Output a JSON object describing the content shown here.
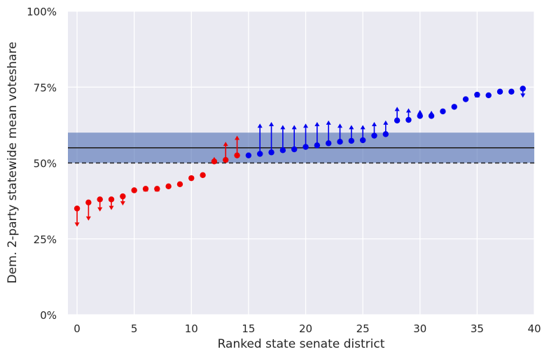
{
  "chart_data": {
    "type": "scatter",
    "title": "",
    "xlabel": "Ranked state senate district",
    "ylabel": "Dem. 2-party statewide mean voteshare",
    "xlim": [
      -0.8,
      40
    ],
    "ylim": [
      0,
      100
    ],
    "x_ticks": [
      0,
      5,
      10,
      15,
      20,
      25,
      30,
      35,
      40
    ],
    "y_ticks": [
      0,
      25,
      50,
      75,
      100
    ],
    "y_tick_labels": [
      "0%",
      "25%",
      "50%",
      "75%",
      "100%"
    ],
    "grid": true,
    "mean_line": 55,
    "reference_line": 50,
    "band": [
      50,
      60
    ],
    "colors": {
      "dem": "#0000ee",
      "rep": "#ee0000",
      "background": "#eaeaf2",
      "band": "#4c6cb3",
      "grid": "#ffffff"
    },
    "series": [
      {
        "party": "rep",
        "points": [
          {
            "x": 0,
            "y": 35,
            "y_end": 29
          },
          {
            "x": 1,
            "y": 37,
            "y_end": 31
          },
          {
            "x": 2,
            "y": 38,
            "y_end": 34
          },
          {
            "x": 3,
            "y": 38,
            "y_end": 34.5
          },
          {
            "x": 4,
            "y": 39,
            "y_end": 36
          },
          {
            "x": 5,
            "y": 41,
            "y_end": 42
          },
          {
            "x": 6,
            "y": 41.5,
            "y_end": 42
          },
          {
            "x": 7,
            "y": 41.5,
            "y_end": 42
          },
          {
            "x": 8,
            "y": 42.3,
            "y_end": 42.3
          },
          {
            "x": 9,
            "y": 43,
            "y_end": 43
          },
          {
            "x": 10,
            "y": 45,
            "y_end": 45
          },
          {
            "x": 11,
            "y": 46,
            "y_end": 46
          },
          {
            "x": 12,
            "y": 50.5,
            "y_end": 52
          },
          {
            "x": 13,
            "y": 51,
            "y_end": 57
          },
          {
            "x": 14,
            "y": 52.5,
            "y_end": 59
          }
        ]
      },
      {
        "party": "dem",
        "points": [
          {
            "x": 15,
            "y": 52.5,
            "y_end": 52.5
          },
          {
            "x": 16,
            "y": 53,
            "y_end": 63
          },
          {
            "x": 17,
            "y": 53.5,
            "y_end": 63.5
          },
          {
            "x": 18,
            "y": 54.2,
            "y_end": 62.5
          },
          {
            "x": 19,
            "y": 54.5,
            "y_end": 62.5
          },
          {
            "x": 20,
            "y": 55.3,
            "y_end": 63
          },
          {
            "x": 21,
            "y": 55.8,
            "y_end": 63.5
          },
          {
            "x": 22,
            "y": 56.5,
            "y_end": 64
          },
          {
            "x": 23,
            "y": 57,
            "y_end": 63
          },
          {
            "x": 24,
            "y": 57.3,
            "y_end": 62.5
          },
          {
            "x": 25,
            "y": 57.5,
            "y_end": 62.5
          },
          {
            "x": 26,
            "y": 59,
            "y_end": 63.5
          },
          {
            "x": 27,
            "y": 59.5,
            "y_end": 64
          },
          {
            "x": 28,
            "y": 64,
            "y_end": 68.5
          },
          {
            "x": 29,
            "y": 64.2,
            "y_end": 68
          },
          {
            "x": 30,
            "y": 65.5,
            "y_end": 67.5
          },
          {
            "x": 31,
            "y": 65.5,
            "y_end": 67.2
          },
          {
            "x": 32,
            "y": 67,
            "y_end": 68
          },
          {
            "x": 33,
            "y": 68.5,
            "y_end": 69.5
          },
          {
            "x": 34,
            "y": 71,
            "y_end": 72
          },
          {
            "x": 35,
            "y": 72.5,
            "y_end": 73
          },
          {
            "x": 36,
            "y": 72.3,
            "y_end": 72.3
          },
          {
            "x": 37,
            "y": 73.5,
            "y_end": 73.5
          },
          {
            "x": 38,
            "y": 73.5,
            "y_end": 73.5
          },
          {
            "x": 39,
            "y": 74.5,
            "y_end": 71.5
          }
        ]
      }
    ]
  }
}
